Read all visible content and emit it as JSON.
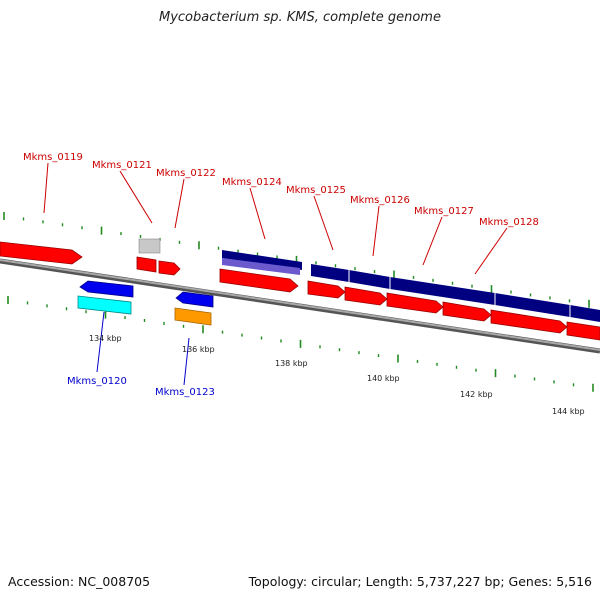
{
  "title": "Mycobacterium sp. KMS, complete genome",
  "footer": {
    "accession": "Accession: NC_008705",
    "stats": "Topology: circular; Length: 5,737,227 bp; Genes: 5,516"
  },
  "ticks": [
    "134 kbp",
    "136 kbp",
    "138 kbp",
    "140 kbp",
    "142 kbp",
    "144 kbp"
  ],
  "gene_labels": [
    {
      "text": "Mkms_0119",
      "strand": "forward"
    },
    {
      "text": "Mkms_0120",
      "strand": "reverse"
    },
    {
      "text": "Mkms_0121",
      "strand": "forward"
    },
    {
      "text": "Mkms_0122",
      "strand": "forward"
    },
    {
      "text": "Mkms_0123",
      "strand": "reverse"
    },
    {
      "text": "Mkms_0124",
      "strand": "forward"
    },
    {
      "text": "Mkms_0125",
      "strand": "forward"
    },
    {
      "text": "Mkms_0126",
      "strand": "forward"
    },
    {
      "text": "Mkms_0127",
      "strand": "forward"
    },
    {
      "text": "Mkms_0128",
      "strand": "forward"
    }
  ],
  "colors": {
    "forward_gene": "#ff0000",
    "reverse_gene": "#0000ee",
    "forward_label": "#cc0000",
    "reverse_label": "#0000cc",
    "operon_dark": "#000080",
    "operon_light": "#6a5acd",
    "cyan_feature": "#00ffff",
    "orange_feature": "#ff9900",
    "grey_feature": "#c0c0c0",
    "backbone": "#808080",
    "tick": "#228b22"
  }
}
